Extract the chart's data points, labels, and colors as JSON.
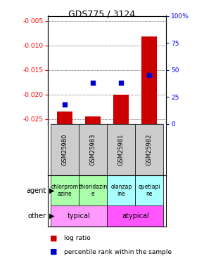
{
  "title": "GDS775 / 3124",
  "samples": [
    "GSM25980",
    "GSM25983",
    "GSM25981",
    "GSM25982"
  ],
  "log_ratios": [
    -0.0235,
    -0.0245,
    -0.02,
    -0.0082
  ],
  "percentile_ranks": [
    18,
    38,
    38,
    45
  ],
  "ylim_left": [
    -0.026,
    -0.004
  ],
  "ylim_right": [
    0,
    100
  ],
  "yticks_left": [
    -0.025,
    -0.02,
    -0.015,
    -0.01,
    -0.005
  ],
  "yticks_right": [
    0,
    25,
    50,
    75,
    100
  ],
  "bar_color": "#cc0000",
  "dot_color": "#0000cc",
  "agent_labels": [
    "chlorprom\nazine",
    "thioridazin\ne",
    "olanzap\nine",
    "quetiapi\nne"
  ],
  "agent_colors": [
    "#aaffaa",
    "#aaffaa",
    "#aaffff",
    "#aaffff"
  ],
  "other_typical": "typical",
  "other_atypical": "atypical",
  "typical_color": "#ff99ff",
  "atypical_color": "#ff55ff",
  "sample_bg_color": "#cccccc",
  "legend_red": "log ratio",
  "legend_blue": "percentile rank within the sample"
}
